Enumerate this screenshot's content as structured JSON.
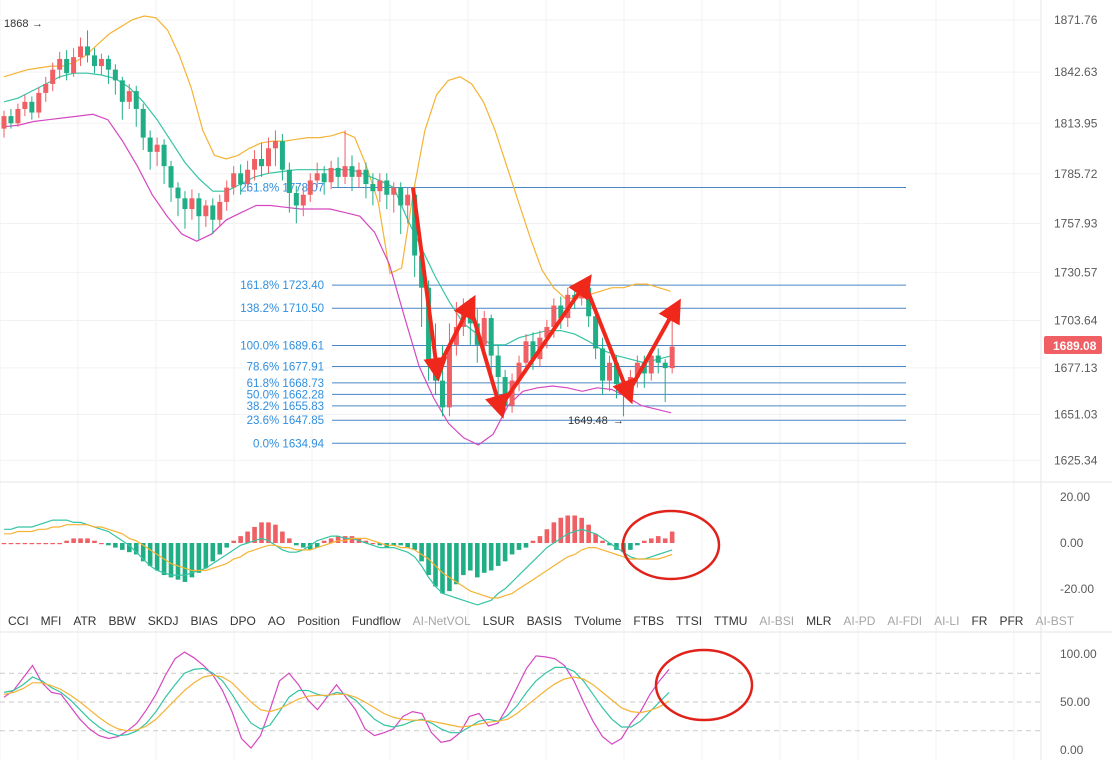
{
  "chart_data": {
    "type": "candlestick",
    "price_axis": {
      "ticks": [
        "1871.76",
        "1842.63",
        "1813.95",
        "1785.72",
        "1757.93",
        "1730.57",
        "1703.64",
        "1677.13",
        "1651.03",
        "1625.34"
      ],
      "current_price": "1689.08",
      "current_price_color": "#ef5f63"
    },
    "annotations": {
      "high_label": "1868",
      "low_label": "1649.48"
    },
    "fibonacci": {
      "levels": [
        {
          "label": "261.8%",
          "value": "1778.07"
        },
        {
          "label": "161.8%",
          "value": "1723.40"
        },
        {
          "label": "138.2%",
          "value": "1710.50"
        },
        {
          "label": "100.0%",
          "value": "1689.61"
        },
        {
          "label": "78.6%",
          "value": "1677.91"
        },
        {
          "label": "61.8%",
          "value": "1668.73"
        },
        {
          "label": "50.0%",
          "value": "1662.28"
        },
        {
          "label": "38.2%",
          "value": "1655.83"
        },
        {
          "label": "23.6%",
          "value": "1647.85"
        },
        {
          "label": "0.0%",
          "value": "1634.94"
        }
      ],
      "color": "#2f8fe0"
    },
    "candles": [
      [
        1811,
        1818,
        1806,
        1821
      ],
      [
        1818,
        1814,
        1811,
        1822
      ],
      [
        1814,
        1822,
        1812,
        1825
      ],
      [
        1822,
        1826,
        1818,
        1830
      ],
      [
        1826,
        1820,
        1816,
        1829
      ],
      [
        1820,
        1831,
        1817,
        1834
      ],
      [
        1831,
        1836,
        1826,
        1840
      ],
      [
        1836,
        1844,
        1832,
        1848
      ],
      [
        1844,
        1850,
        1839,
        1854
      ],
      [
        1850,
        1842,
        1838,
        1855
      ],
      [
        1842,
        1851,
        1840,
        1856
      ],
      [
        1851,
        1857,
        1846,
        1862
      ],
      [
        1857,
        1852,
        1848,
        1866
      ],
      [
        1852,
        1846,
        1842,
        1856
      ],
      [
        1846,
        1850,
        1841,
        1853
      ],
      [
        1850,
        1844,
        1836,
        1852
      ],
      [
        1844,
        1838,
        1830,
        1847
      ],
      [
        1838,
        1826,
        1816,
        1840
      ],
      [
        1826,
        1832,
        1822,
        1836
      ],
      [
        1832,
        1822,
        1812,
        1835
      ],
      [
        1822,
        1806,
        1799,
        1825
      ],
      [
        1806,
        1798,
        1788,
        1810
      ],
      [
        1798,
        1802,
        1790,
        1806
      ],
      [
        1802,
        1790,
        1780,
        1805
      ],
      [
        1790,
        1778,
        1770,
        1793
      ],
      [
        1778,
        1772,
        1762,
        1781
      ],
      [
        1772,
        1766,
        1755,
        1776
      ],
      [
        1766,
        1772,
        1760,
        1777
      ],
      [
        1772,
        1762,
        1749,
        1775
      ],
      [
        1762,
        1768,
        1756,
        1771
      ],
      [
        1768,
        1760,
        1752,
        1772
      ],
      [
        1760,
        1770,
        1756,
        1774
      ],
      [
        1770,
        1778,
        1765,
        1782
      ],
      [
        1778,
        1786,
        1774,
        1790
      ],
      [
        1786,
        1780,
        1774,
        1791
      ],
      [
        1780,
        1788,
        1776,
        1793
      ],
      [
        1788,
        1794,
        1782,
        1799
      ],
      [
        1794,
        1790,
        1784,
        1803
      ],
      [
        1790,
        1800,
        1786,
        1806
      ],
      [
        1800,
        1804,
        1790,
        1810
      ],
      [
        1804,
        1788,
        1782,
        1808
      ],
      [
        1788,
        1775,
        1764,
        1792
      ],
      [
        1775,
        1768,
        1758,
        1779
      ],
      [
        1768,
        1774,
        1762,
        1778
      ],
      [
        1774,
        1782,
        1770,
        1786
      ],
      [
        1782,
        1786,
        1778,
        1792
      ],
      [
        1786,
        1781,
        1774,
        1790
      ],
      [
        1781,
        1789,
        1777,
        1793
      ],
      [
        1789,
        1784,
        1778,
        1795
      ],
      [
        1784,
        1790,
        1780,
        1810
      ],
      [
        1790,
        1784,
        1776,
        1796
      ],
      [
        1784,
        1788,
        1778,
        1792
      ],
      [
        1788,
        1780,
        1772,
        1792
      ],
      [
        1780,
        1776,
        1768,
        1786
      ],
      [
        1776,
        1782,
        1770,
        1786
      ],
      [
        1782,
        1774,
        1766,
        1786
      ],
      [
        1774,
        1778,
        1764,
        1781
      ],
      [
        1778,
        1768,
        1752,
        1781
      ],
      [
        1768,
        1774,
        1758,
        1778
      ],
      [
        1774,
        1740,
        1728,
        1778
      ],
      [
        1740,
        1722,
        1700,
        1745
      ],
      [
        1722,
        1680,
        1670,
        1726
      ],
      [
        1680,
        1670,
        1662,
        1702
      ],
      [
        1670,
        1655,
        1650,
        1690
      ],
      [
        1655,
        1690,
        1650,
        1702
      ],
      [
        1690,
        1700,
        1684,
        1714
      ],
      [
        1700,
        1712,
        1695,
        1716
      ],
      [
        1712,
        1702,
        1690,
        1716
      ],
      [
        1702,
        1690,
        1680,
        1710
      ],
      [
        1690,
        1705,
        1686,
        1709
      ],
      [
        1705,
        1684,
        1672,
        1707
      ],
      [
        1684,
        1672,
        1660,
        1690
      ],
      [
        1672,
        1656,
        1653,
        1676
      ],
      [
        1656,
        1670,
        1652,
        1674
      ],
      [
        1670,
        1680,
        1664,
        1684
      ],
      [
        1680,
        1692,
        1674,
        1696
      ],
      [
        1692,
        1682,
        1676,
        1697
      ],
      [
        1682,
        1694,
        1678,
        1698
      ],
      [
        1694,
        1700,
        1688,
        1704
      ],
      [
        1700,
        1712,
        1694,
        1716
      ],
      [
        1712,
        1705,
        1699,
        1717
      ],
      [
        1705,
        1718,
        1700,
        1722
      ],
      [
        1718,
        1716,
        1710,
        1722
      ],
      [
        1716,
        1722,
        1712,
        1726
      ],
      [
        1722,
        1706,
        1700,
        1725
      ],
      [
        1706,
        1688,
        1682,
        1710
      ],
      [
        1688,
        1670,
        1662,
        1694
      ],
      [
        1670,
        1680,
        1664,
        1684
      ],
      [
        1680,
        1668,
        1660,
        1684
      ],
      [
        1668,
        1664,
        1650,
        1672
      ],
      [
        1664,
        1672,
        1658,
        1676
      ],
      [
        1672,
        1680,
        1666,
        1684
      ],
      [
        1680,
        1674,
        1666,
        1684
      ],
      [
        1674,
        1684,
        1670,
        1688
      ],
      [
        1684,
        1680,
        1674,
        1688
      ],
      [
        1680,
        1677,
        1658,
        1682
      ],
      [
        1677,
        1689,
        1674,
        1708
      ]
    ],
    "macd": {
      "axis_ticks": [
        "20.00",
        "0.00",
        "-20.00"
      ],
      "hist": [
        0,
        0,
        0,
        0,
        0,
        0,
        0,
        0,
        0,
        1,
        2,
        2,
        2,
        1,
        0,
        -1,
        -2,
        -3,
        -4,
        -5,
        -8,
        -10,
        -12,
        -14,
        -15,
        -16,
        -17,
        -15,
        -13,
        -11,
        -8,
        -5,
        -2,
        1,
        3,
        5,
        7,
        9,
        9,
        8,
        5,
        2,
        -1,
        -2,
        -3,
        -2,
        1,
        2,
        3,
        3,
        3,
        2,
        1,
        0,
        -1,
        -2,
        -1,
        -1,
        -2,
        -3,
        -8,
        -14,
        -19,
        -22,
        -21,
        -18,
        -14,
        -12,
        -15,
        -13,
        -12,
        -10,
        -8,
        -5,
        -3,
        -2,
        1,
        3,
        6,
        9,
        11,
        12,
        12,
        11,
        8,
        4,
        1,
        -1,
        -3,
        -4,
        -3,
        -1,
        1,
        2,
        3,
        2,
        5
      ],
      "dif": [
        6,
        6,
        7,
        7,
        7,
        8,
        9,
        10,
        10,
        10,
        9,
        9,
        8,
        7,
        6,
        5,
        3,
        1,
        -1,
        -4,
        -7,
        -10,
        -12,
        -13,
        -14,
        -14,
        -14,
        -13,
        -12,
        -11,
        -9,
        -7,
        -5,
        -3,
        -1,
        0,
        1,
        2,
        1,
        -1,
        -3,
        -4,
        -4,
        -3,
        -1,
        1,
        2,
        3,
        3,
        2,
        2,
        1,
        0,
        -1,
        -2,
        -2,
        -2,
        -3,
        -4,
        -6,
        -10,
        -15,
        -19,
        -22,
        -23,
        -24,
        -25,
        -26,
        -27,
        -26,
        -25,
        -22,
        -20,
        -17,
        -14,
        -11,
        -8,
        -5,
        -2,
        0,
        2,
        4,
        5,
        6,
        5,
        4,
        2,
        0,
        -2,
        -4,
        -6,
        -7,
        -7,
        -6,
        -5,
        -4,
        -3
      ],
      "dea": [
        4,
        4,
        5,
        5,
        5,
        6,
        6,
        7,
        7,
        8,
        8,
        8,
        8,
        7,
        7,
        6,
        5,
        4,
        2,
        1,
        -1,
        -3,
        -5,
        -7,
        -9,
        -10,
        -11,
        -12,
        -12,
        -12,
        -11,
        -10,
        -9,
        -7,
        -6,
        -4,
        -3,
        -2,
        -1,
        -1,
        -2,
        -2,
        -3,
        -3,
        -3,
        -2,
        -1,
        0,
        1,
        1,
        2,
        2,
        2,
        1,
        0,
        -1,
        -1,
        -2,
        -2,
        -3,
        -5,
        -7,
        -10,
        -13,
        -15,
        -17,
        -19,
        -21,
        -22,
        -23,
        -24,
        -24,
        -23,
        -22,
        -20,
        -18,
        -16,
        -14,
        -12,
        -10,
        -8,
        -6,
        -5,
        -3,
        -2,
        -2,
        -3,
        -4,
        -5,
        -6,
        -7,
        -7,
        -7,
        -7,
        -7,
        -6,
        -5
      ]
    },
    "oscillator": {
      "axis_ticks": [
        "100.00",
        "50.00",
        "0.00"
      ],
      "reference_lines": [
        80,
        50,
        20
      ],
      "k": [
        55,
        62,
        75,
        88,
        70,
        60,
        58,
        45,
        32,
        22,
        15,
        12,
        14,
        20,
        28,
        42,
        58,
        78,
        95,
        102,
        96,
        88,
        78,
        62,
        40,
        12,
        2,
        15,
        42,
        72,
        80,
        68,
        52,
        42,
        55,
        68,
        55,
        42,
        22,
        15,
        18,
        22,
        35,
        40,
        38,
        18,
        8,
        10,
        18,
        35,
        38,
        25,
        28,
        45,
        65,
        85,
        98,
        97,
        95,
        88,
        72,
        50,
        30,
        14,
        6,
        12,
        28,
        40,
        58,
        72,
        84
      ],
      "d": [
        60,
        62,
        68,
        76,
        72,
        65,
        60,
        52,
        42,
        32,
        24,
        18,
        15,
        16,
        20,
        28,
        40,
        55,
        68,
        80,
        84,
        85,
        80,
        72,
        58,
        42,
        28,
        22,
        26,
        40,
        55,
        62,
        62,
        58,
        56,
        60,
        58,
        52,
        42,
        32,
        26,
        24,
        26,
        30,
        32,
        28,
        22,
        18,
        18,
        24,
        30,
        32,
        30,
        36,
        46,
        60,
        72,
        80,
        86,
        86,
        82,
        72,
        58,
        44,
        32,
        24,
        24,
        30,
        40,
        50,
        60
      ],
      "j": [
        58,
        60,
        64,
        70,
        70,
        67,
        63,
        57,
        50,
        42,
        34,
        27,
        22,
        20,
        21,
        25,
        32,
        42,
        52,
        62,
        70,
        76,
        78,
        76,
        70,
        60,
        50,
        42,
        40,
        43,
        48,
        53,
        56,
        57,
        57,
        58,
        58,
        55,
        50,
        44,
        38,
        34,
        32,
        31,
        31,
        30,
        28,
        26,
        24,
        25,
        27,
        29,
        30,
        32,
        38,
        46,
        54,
        62,
        69,
        74,
        76,
        74,
        68,
        60,
        52,
        44,
        40,
        39,
        41,
        45,
        51
      ]
    },
    "bands_upper": [
      1840,
      1842,
      1844,
      1845,
      1846,
      1846,
      1848,
      1852,
      1858,
      1864,
      1868,
      1872,
      1874,
      1873,
      1866,
      1852,
      1834,
      1810,
      1796,
      1794,
      1796,
      1800,
      1803,
      1804,
      1804,
      1805,
      1806,
      1806,
      1807,
      1809,
      1806,
      1790,
      1770,
      1730,
      1733,
      1775,
      1810,
      1830,
      1838,
      1840,
      1836,
      1826,
      1810,
      1790,
      1770,
      1750,
      1732,
      1722,
      1716,
      1716,
      1718,
      1720,
      1722,
      1722,
      1724,
      1724,
      1722,
      1720
    ],
    "bands_mid": [
      1826,
      1828,
      1832,
      1836,
      1840,
      1842,
      1842,
      1841,
      1839,
      1834,
      1826,
      1816,
      1804,
      1792,
      1783,
      1776,
      1776,
      1780,
      1784,
      1786,
      1787,
      1788,
      1788,
      1788,
      1788,
      1788,
      1785,
      1782,
      1778,
      1760,
      1744,
      1728,
      1714,
      1702,
      1696,
      1690,
      1690,
      1694,
      1696,
      1698,
      1698,
      1696,
      1692,
      1687,
      1684,
      1682,
      1680,
      1682,
      1684
    ],
    "bands_lower": [
      1812,
      1813,
      1815,
      1816,
      1817,
      1818,
      1819,
      1816,
      1804,
      1790,
      1774,
      1762,
      1752,
      1748,
      1752,
      1760,
      1764,
      1768,
      1768,
      1767,
      1766,
      1766,
      1766,
      1764,
      1762,
      1753,
      1735,
      1706,
      1678,
      1660,
      1646,
      1638,
      1634,
      1640,
      1656,
      1664,
      1666,
      1667,
      1666,
      1664,
      1666,
      1665,
      1661,
      1656,
      1654,
      1652
    ],
    "zigzag_points": [
      [
        1778,
        0
      ],
      [
        1676,
        1
      ],
      [
        1712,
        2
      ],
      [
        1655,
        3
      ],
      [
        1724,
        4
      ],
      [
        1663,
        5
      ],
      [
        1710,
        6
      ]
    ]
  },
  "indicator_tabs": [
    {
      "label": "CCI",
      "dim": false
    },
    {
      "label": "MFI",
      "dim": false
    },
    {
      "label": "ATR",
      "dim": false
    },
    {
      "label": "BBW",
      "dim": false
    },
    {
      "label": "SKDJ",
      "dim": false
    },
    {
      "label": "BIAS",
      "dim": false
    },
    {
      "label": "DPO",
      "dim": false
    },
    {
      "label": "AO",
      "dim": false
    },
    {
      "label": "Position",
      "dim": false
    },
    {
      "label": "Fundflow",
      "dim": false
    },
    {
      "label": "AI-NetVOL",
      "dim": true
    },
    {
      "label": "LSUR",
      "dim": false
    },
    {
      "label": "BASIS",
      "dim": false
    },
    {
      "label": "TVolume",
      "dim": false
    },
    {
      "label": "FTBS",
      "dim": false
    },
    {
      "label": "TTSI",
      "dim": false
    },
    {
      "label": "TTMU",
      "dim": false
    },
    {
      "label": "AI-BSI",
      "dim": true
    },
    {
      "label": "MLR",
      "dim": false
    },
    {
      "label": "AI-PD",
      "dim": true
    },
    {
      "label": "AI-FDI",
      "dim": true
    },
    {
      "label": "AI-LI",
      "dim": true
    },
    {
      "label": "FR",
      "dim": false
    },
    {
      "label": "PFR",
      "dim": false
    },
    {
      "label": "AI-BST",
      "dim": true
    }
  ],
  "colors": {
    "up": "#ef5f63",
    "down": "#1fae86",
    "band_upper": "#f5b335",
    "band_mid": "#35c4a4",
    "band_lower": "#d548c1",
    "macd_dif": "#35c4a4",
    "macd_dea": "#f5b335",
    "osc_k": "#d548c1",
    "osc_d": "#35c4a4",
    "osc_j": "#f5b335",
    "arrows": "#f0281c",
    "circles": "#e0221a"
  }
}
